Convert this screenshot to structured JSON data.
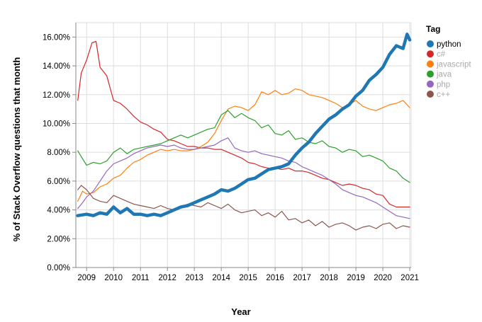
{
  "chart_data": {
    "type": "line",
    "xlabel": "Year",
    "ylabel": "% of Stack Overflow questions that month",
    "ylim": [
      0,
      17
    ],
    "xlim": [
      2008.6,
      2021.05
    ],
    "y_ticks": [
      "0.00%",
      "2.00%",
      "4.00%",
      "6.00%",
      "8.00%",
      "10.00%",
      "12.00%",
      "14.00%",
      "16.00%"
    ],
    "y_tick_values": [
      0,
      2,
      4,
      6,
      8,
      10,
      12,
      14,
      16
    ],
    "x_ticks": [
      "2009",
      "2010",
      "2011",
      "2012",
      "2013",
      "2014",
      "2015",
      "2016",
      "2017",
      "2018",
      "2019",
      "2020",
      "2021"
    ],
    "x_tick_values": [
      2009,
      2010,
      2011,
      2012,
      2013,
      2014,
      2015,
      2016,
      2017,
      2018,
      2019,
      2020,
      2021
    ],
    "grid": true,
    "legend": {
      "title": "Tag",
      "position": "top-right"
    },
    "series": [
      {
        "name": "python",
        "color": "#1f77b4",
        "emphasis": "bold",
        "x": [
          2008.67,
          2009.0,
          2009.25,
          2009.5,
          2009.75,
          2010.0,
          2010.25,
          2010.5,
          2010.75,
          2011.0,
          2011.25,
          2011.5,
          2011.75,
          2012.0,
          2012.25,
          2012.5,
          2012.75,
          2013.0,
          2013.25,
          2013.5,
          2013.75,
          2014.0,
          2014.25,
          2014.5,
          2014.75,
          2015.0,
          2015.25,
          2015.5,
          2015.75,
          2016.0,
          2016.25,
          2016.5,
          2016.75,
          2017.0,
          2017.25,
          2017.5,
          2017.75,
          2018.0,
          2018.25,
          2018.5,
          2018.75,
          2019.0,
          2019.25,
          2019.5,
          2019.75,
          2020.0,
          2020.25,
          2020.5,
          2020.75,
          2020.9,
          2021.0
        ],
        "y": [
          3.6,
          3.7,
          3.6,
          3.8,
          3.7,
          4.2,
          3.8,
          4.1,
          3.7,
          3.7,
          3.6,
          3.7,
          3.6,
          3.8,
          4.0,
          4.2,
          4.3,
          4.5,
          4.7,
          4.9,
          5.1,
          5.4,
          5.3,
          5.5,
          5.8,
          6.1,
          6.2,
          6.5,
          6.8,
          6.9,
          7.0,
          7.2,
          7.8,
          8.3,
          8.7,
          9.3,
          9.8,
          10.3,
          10.6,
          11.0,
          11.3,
          11.9,
          12.3,
          13.0,
          13.4,
          13.9,
          14.8,
          15.4,
          15.2,
          16.2,
          15.8
        ]
      },
      {
        "name": "c#",
        "color": "#d62728",
        "x": [
          2008.67,
          2008.8,
          2009.0,
          2009.2,
          2009.35,
          2009.5,
          2009.75,
          2010.0,
          2010.25,
          2010.5,
          2010.75,
          2011.0,
          2011.25,
          2011.5,
          2011.75,
          2012.0,
          2012.25,
          2012.5,
          2012.75,
          2013.0,
          2013.25,
          2013.5,
          2013.75,
          2014.0,
          2014.25,
          2014.5,
          2014.75,
          2015.0,
          2015.25,
          2015.5,
          2015.75,
          2016.0,
          2016.25,
          2016.5,
          2016.75,
          2017.0,
          2017.25,
          2017.5,
          2017.75,
          2018.0,
          2018.25,
          2018.5,
          2018.75,
          2019.0,
          2019.25,
          2019.5,
          2019.75,
          2020.0,
          2020.25,
          2020.5,
          2020.75,
          2021.0
        ],
        "y": [
          11.6,
          13.5,
          14.4,
          15.6,
          15.7,
          13.9,
          13.3,
          11.6,
          11.4,
          11.0,
          10.5,
          10.1,
          9.9,
          9.6,
          9.4,
          8.9,
          8.8,
          8.6,
          8.4,
          8.4,
          8.3,
          8.3,
          8.2,
          8.2,
          8.0,
          7.8,
          7.6,
          7.3,
          7.2,
          7.0,
          6.9,
          6.9,
          6.8,
          6.9,
          6.7,
          6.7,
          6.6,
          6.4,
          6.2,
          6.1,
          5.9,
          5.7,
          5.8,
          5.7,
          5.5,
          5.4,
          5.1,
          5.0,
          4.4,
          4.2,
          4.2,
          4.2
        ]
      },
      {
        "name": "javascript",
        "color": "#ff7f0e",
        "x": [
          2008.67,
          2008.85,
          2009.0,
          2009.25,
          2009.5,
          2009.75,
          2010.0,
          2010.25,
          2010.5,
          2010.75,
          2011.0,
          2011.25,
          2011.5,
          2011.75,
          2012.0,
          2012.25,
          2012.5,
          2012.75,
          2013.0,
          2013.25,
          2013.5,
          2013.75,
          2014.0,
          2014.25,
          2014.5,
          2014.75,
          2015.0,
          2015.25,
          2015.5,
          2015.75,
          2016.0,
          2016.25,
          2016.5,
          2016.75,
          2017.0,
          2017.25,
          2017.5,
          2017.75,
          2018.0,
          2018.25,
          2018.5,
          2018.75,
          2019.0,
          2019.25,
          2019.5,
          2019.75,
          2020.0,
          2020.25,
          2020.5,
          2020.75,
          2021.0
        ],
        "y": [
          4.6,
          5.3,
          5.1,
          5.2,
          5.6,
          5.8,
          6.2,
          6.4,
          6.9,
          7.3,
          7.5,
          7.8,
          8.0,
          8.2,
          8.1,
          8.2,
          8.1,
          8.1,
          8.2,
          8.4,
          8.7,
          9.3,
          10.2,
          11.0,
          11.2,
          11.1,
          10.9,
          11.3,
          12.2,
          12.0,
          12.3,
          12.0,
          12.1,
          12.4,
          12.3,
          12.0,
          11.9,
          11.8,
          11.6,
          11.4,
          11.1,
          11.3,
          11.6,
          11.2,
          11.0,
          10.9,
          11.1,
          11.3,
          11.4,
          11.6,
          11.1
        ]
      },
      {
        "name": "java",
        "color": "#2ca02c",
        "x": [
          2008.67,
          2008.8,
          2009.0,
          2009.25,
          2009.5,
          2009.75,
          2010.0,
          2010.25,
          2010.5,
          2010.75,
          2011.0,
          2011.25,
          2011.5,
          2011.75,
          2012.0,
          2012.25,
          2012.5,
          2012.75,
          2013.0,
          2013.25,
          2013.5,
          2013.75,
          2014.0,
          2014.25,
          2014.5,
          2014.75,
          2015.0,
          2015.25,
          2015.5,
          2015.75,
          2016.0,
          2016.25,
          2016.5,
          2016.75,
          2017.0,
          2017.25,
          2017.5,
          2017.75,
          2018.0,
          2018.25,
          2018.5,
          2018.75,
          2019.0,
          2019.25,
          2019.5,
          2019.75,
          2020.0,
          2020.25,
          2020.5,
          2020.75,
          2021.0
        ],
        "y": [
          8.1,
          7.7,
          7.1,
          7.3,
          7.2,
          7.4,
          8.0,
          8.3,
          7.9,
          8.2,
          8.3,
          8.4,
          8.5,
          8.6,
          8.8,
          9.0,
          9.2,
          9.0,
          9.2,
          9.4,
          9.6,
          9.7,
          10.6,
          10.9,
          10.4,
          10.7,
          10.4,
          10.2,
          9.7,
          9.9,
          9.3,
          9.2,
          9.5,
          8.9,
          9.0,
          8.7,
          8.6,
          8.8,
          8.4,
          8.3,
          8.0,
          8.2,
          8.1,
          7.7,
          7.8,
          7.6,
          7.4,
          6.9,
          6.7,
          6.2,
          5.9
        ]
      },
      {
        "name": "php",
        "color": "#9467bd",
        "x": [
          2008.67,
          2008.85,
          2009.0,
          2009.25,
          2009.5,
          2009.75,
          2010.0,
          2010.25,
          2010.5,
          2010.75,
          2011.0,
          2011.25,
          2011.5,
          2011.75,
          2012.0,
          2012.25,
          2012.5,
          2012.75,
          2013.0,
          2013.25,
          2013.5,
          2013.75,
          2014.0,
          2014.25,
          2014.5,
          2014.75,
          2015.0,
          2015.25,
          2015.5,
          2015.75,
          2016.0,
          2016.25,
          2016.5,
          2016.75,
          2017.0,
          2017.25,
          2017.5,
          2017.75,
          2018.0,
          2018.25,
          2018.5,
          2018.75,
          2019.0,
          2019.25,
          2019.5,
          2019.75,
          2020.0,
          2020.25,
          2020.5,
          2020.75,
          2021.0
        ],
        "y": [
          4.1,
          4.5,
          4.9,
          5.3,
          6.0,
          6.7,
          7.2,
          7.4,
          7.6,
          7.9,
          8.1,
          8.3,
          8.4,
          8.5,
          8.4,
          8.5,
          8.3,
          8.2,
          8.2,
          8.3,
          8.4,
          8.5,
          8.8,
          9.0,
          8.3,
          8.1,
          8.0,
          8.1,
          7.9,
          7.8,
          7.7,
          7.6,
          7.4,
          7.3,
          7.0,
          6.8,
          6.6,
          6.4,
          6.1,
          5.8,
          5.4,
          5.2,
          5.0,
          4.9,
          4.7,
          4.5,
          4.2,
          3.9,
          3.6,
          3.5,
          3.4
        ]
      },
      {
        "name": "c++",
        "color": "#8c564b",
        "x": [
          2008.67,
          2008.8,
          2009.0,
          2009.25,
          2009.5,
          2009.75,
          2010.0,
          2010.25,
          2010.5,
          2010.75,
          2011.0,
          2011.25,
          2011.5,
          2011.75,
          2012.0,
          2012.25,
          2012.5,
          2012.75,
          2013.0,
          2013.25,
          2013.5,
          2013.75,
          2014.0,
          2014.25,
          2014.5,
          2014.75,
          2015.0,
          2015.25,
          2015.5,
          2015.75,
          2016.0,
          2016.25,
          2016.5,
          2016.75,
          2017.0,
          2017.25,
          2017.5,
          2017.75,
          2018.0,
          2018.25,
          2018.5,
          2018.75,
          2019.0,
          2019.25,
          2019.5,
          2019.75,
          2020.0,
          2020.25,
          2020.5,
          2020.75,
          2021.0
        ],
        "y": [
          5.4,
          5.7,
          5.4,
          4.8,
          4.6,
          4.5,
          5.0,
          4.8,
          4.6,
          4.4,
          4.3,
          4.2,
          4.1,
          4.3,
          4.1,
          4.0,
          4.2,
          4.4,
          4.3,
          4.2,
          4.5,
          4.3,
          4.1,
          4.4,
          4.0,
          3.8,
          3.9,
          4.0,
          3.6,
          3.8,
          3.5,
          3.9,
          3.3,
          3.4,
          3.1,
          3.3,
          2.9,
          3.2,
          2.8,
          3.0,
          3.1,
          2.9,
          2.6,
          2.8,
          2.9,
          2.7,
          3.0,
          3.1,
          2.7,
          2.9,
          2.8
        ]
      }
    ]
  }
}
